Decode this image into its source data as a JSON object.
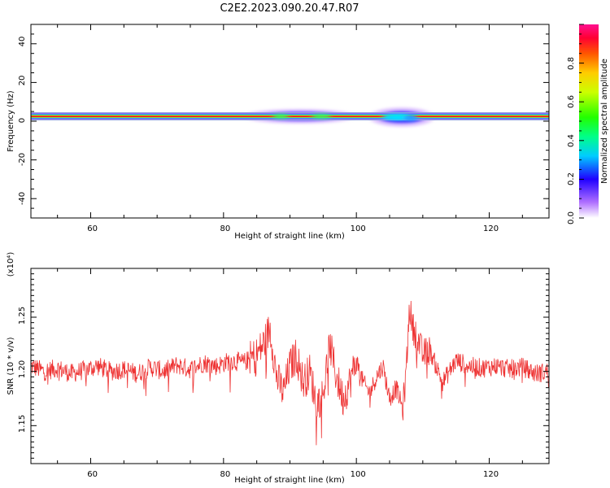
{
  "title": "C2E2.2023.090.20.47.R07",
  "chart_data": [
    {
      "type": "heatmap",
      "xlabel": "Height of straight line (km)",
      "ylabel": "Frequency (Hz)",
      "xlim": [
        51,
        129
      ],
      "ylim": [
        -50,
        50
      ],
      "x_ticks": [
        "60",
        "80",
        "100",
        "120"
      ],
      "y_ticks": [
        "40",
        "20",
        "0",
        "-20",
        "-40"
      ],
      "colorbar": {
        "label": "Normalized spectral amplitude",
        "range": [
          0,
          1
        ],
        "ticks": [
          "0.0",
          "0.2",
          "0.4",
          "0.6",
          "0.8"
        ]
      },
      "band_center_hz": 1.5,
      "spread_regions": [
        {
          "x_start": 83,
          "x_end": 97,
          "max_extent_hz": 5
        },
        {
          "x_start": 101,
          "x_end": 111,
          "max_extent_hz": 7
        }
      ],
      "grid": false
    },
    {
      "type": "line",
      "xlabel": "Height of straight line (km)",
      "ylabel": "SNR (10 * v/v)",
      "y_multiplier": "(x10⁴)",
      "xlim": [
        51,
        129
      ],
      "ylim": [
        1.115,
        1.295
      ],
      "x_ticks": [
        "60",
        "80",
        "100",
        "120"
      ],
      "y_ticks": [
        "1.15",
        "1.20",
        "1.25"
      ],
      "series": [
        {
          "color": "#ee3333",
          "x": [
            51,
            53,
            55,
            57,
            59,
            61,
            63,
            65,
            67,
            69,
            71,
            73,
            75,
            77,
            79,
            81,
            83,
            85,
            86,
            87,
            88,
            89,
            90,
            91,
            92,
            93,
            94,
            95,
            96,
            97,
            98,
            99,
            100,
            101,
            102,
            103,
            104,
            105,
            106,
            107,
            107.5,
            108,
            108.5,
            109,
            110,
            111,
            112,
            113,
            114,
            115,
            117,
            119,
            121,
            123,
            125,
            127,
            129
          ],
          "y": [
            1.205,
            1.2,
            1.203,
            1.198,
            1.201,
            1.205,
            1.2,
            1.202,
            1.198,
            1.204,
            1.2,
            1.206,
            1.202,
            1.208,
            1.205,
            1.21,
            1.208,
            1.215,
            1.225,
            1.24,
            1.195,
            1.18,
            1.205,
            1.215,
            1.19,
            1.2,
            1.17,
            1.18,
            1.225,
            1.195,
            1.175,
            1.19,
            1.21,
            1.19,
            1.18,
            1.195,
            1.205,
            1.175,
            1.185,
            1.165,
            1.2,
            1.26,
            1.24,
            1.235,
            1.215,
            1.22,
            1.205,
            1.19,
            1.2,
            1.21,
            1.205,
            1.203,
            1.205,
            1.202,
            1.204,
            1.198,
            1.2
          ]
        }
      ],
      "grid": false
    }
  ]
}
